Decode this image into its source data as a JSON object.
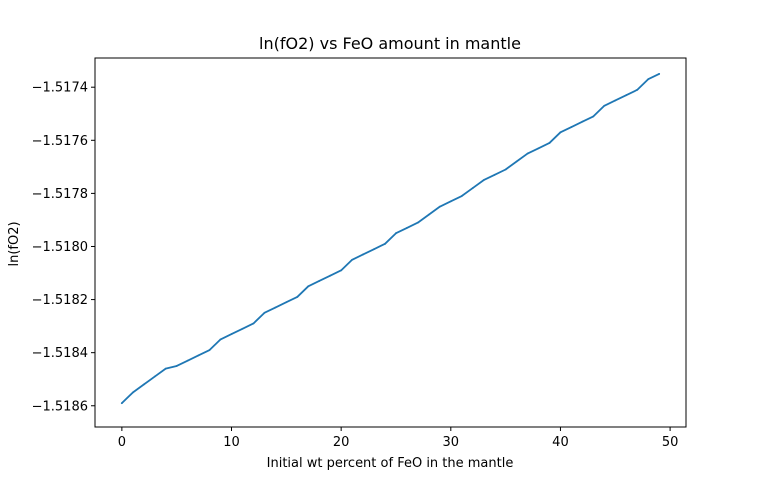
{
  "chart_data": {
    "type": "line",
    "title": "ln(fO2) vs FeO amount in mantle",
    "xlabel": "Initial wt percent of FeO in the mantle",
    "ylabel": "ln(fO2)",
    "xlim": [
      -2.45,
      51.45
    ],
    "ylim": [
      -1.51868,
      -1.51729
    ],
    "xticks": [
      0,
      10,
      20,
      30,
      40,
      50
    ],
    "xtick_labels": [
      "0",
      "10",
      "20",
      "30",
      "40",
      "50"
    ],
    "yticks": [
      -1.5186,
      -1.5184,
      -1.5182,
      -1.518,
      -1.5178,
      -1.5176,
      -1.5174
    ],
    "ytick_labels": [
      "−1.5186",
      "−1.5184",
      "−1.5182",
      "−1.5180",
      "−1.5178",
      "−1.5176",
      "−1.5174"
    ],
    "grid": false,
    "line_color": "#1f77b4",
    "series": [
      {
        "x": [
          0,
          1,
          2,
          3,
          4,
          5,
          6,
          7,
          8,
          9,
          10,
          11,
          12,
          13,
          14,
          15,
          16,
          17,
          18,
          19,
          20,
          21,
          22,
          23,
          24,
          25,
          26,
          27,
          28,
          29,
          30,
          31,
          32,
          33,
          34,
          35,
          36,
          37,
          38,
          39,
          40,
          41,
          42,
          43,
          44,
          45,
          46,
          47,
          48,
          49
        ],
        "y": [
          -1.51859,
          -1.51855,
          -1.51852,
          -1.51849,
          -1.51846,
          -1.51845,
          -1.51843,
          -1.51841,
          -1.51839,
          -1.51835,
          -1.51833,
          -1.51831,
          -1.51829,
          -1.51825,
          -1.51823,
          -1.51821,
          -1.51819,
          -1.51815,
          -1.51813,
          -1.51811,
          -1.51809,
          -1.51805,
          -1.51803,
          -1.51801,
          -1.51799,
          -1.51795,
          -1.51793,
          -1.51791,
          -1.51788,
          -1.51785,
          -1.51783,
          -1.51781,
          -1.51778,
          -1.51775,
          -1.51773,
          -1.51771,
          -1.51768,
          -1.51765,
          -1.51763,
          -1.51761,
          -1.51757,
          -1.51755,
          -1.51753,
          -1.51751,
          -1.51747,
          -1.51745,
          -1.51743,
          -1.51741,
          -1.51737,
          -1.51735
        ]
      }
    ]
  }
}
